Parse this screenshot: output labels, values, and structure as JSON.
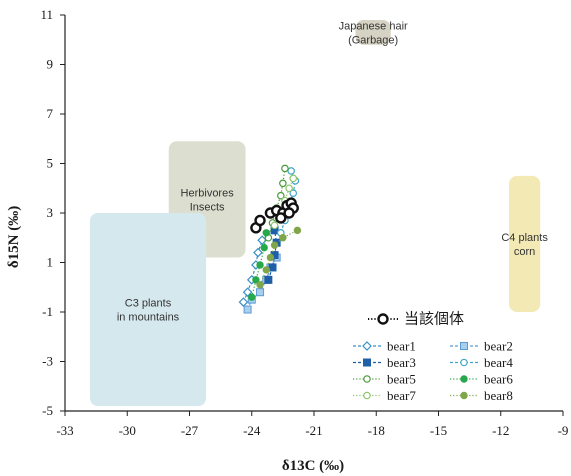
{
  "chart_data": {
    "type": "scatter",
    "xlabel": "δ13C (‰)",
    "ylabel": "δ15N (‰)",
    "xlim": [
      -33,
      -9
    ],
    "ylim": [
      -5,
      11
    ],
    "x_ticks": [
      "-33",
      "-30",
      "-27",
      "-24",
      "-21",
      "-18",
      "-15",
      "-12",
      "-9"
    ],
    "y_ticks": [
      "-5",
      "-3",
      "-1",
      "1",
      "3",
      "5",
      "7",
      "9",
      "11"
    ],
    "grid": false,
    "legend_placement": "bottom-right",
    "regions": [
      {
        "name": "japanese-hair",
        "lines": [
          "Japanese hair",
          "(Garbage)"
        ],
        "x": [
          -19,
          -17.3
        ],
        "y": [
          9.8,
          10.8
        ],
        "color": "#d6d3c4"
      },
      {
        "name": "herbivores-insects",
        "lines": [
          "Herbivores",
          "Insects"
        ],
        "x": [
          -28,
          -24.3
        ],
        "y": [
          1.2,
          5.9
        ],
        "color": "#dcdfcf"
      },
      {
        "name": "c3-plants",
        "lines": [
          "C3 plants",
          "in mountains"
        ],
        "x": [
          -31.8,
          -26.2
        ],
        "y": [
          -4.8,
          3.0
        ],
        "color": "#d5e8ee"
      },
      {
        "name": "c4-plants",
        "lines": [
          "C4 plants",
          "corn"
        ],
        "x": [
          -11.6,
          -10.1
        ],
        "y": [
          -1.0,
          4.5
        ],
        "color": "#f2e9b5"
      }
    ],
    "series": [
      {
        "name": "当該個体",
        "marker": "ring-bold",
        "color": "#111111",
        "line": "dotted",
        "points": [
          [
            -23.8,
            2.4
          ],
          [
            -23.6,
            2.7
          ],
          [
            -23.1,
            3.0
          ],
          [
            -22.8,
            3.1
          ],
          [
            -22.5,
            3.0
          ],
          [
            -22.3,
            3.3
          ],
          [
            -22.1,
            3.4
          ],
          [
            -22.0,
            3.2
          ],
          [
            -22.2,
            3.0
          ],
          [
            -22.6,
            2.8
          ]
        ]
      },
      {
        "name": "bear1",
        "marker": "diamond-open",
        "color": "#3a8fc4",
        "line": "dashed",
        "points": [
          [
            -24.4,
            -0.6
          ],
          [
            -24.2,
            -0.2
          ],
          [
            -24.0,
            0.3
          ],
          [
            -23.8,
            0.9
          ],
          [
            -23.7,
            1.4
          ],
          [
            -23.5,
            1.9
          ]
        ]
      },
      {
        "name": "bear2",
        "marker": "square-light",
        "color": "#5b9bd5",
        "line": "dashed",
        "points": [
          [
            -24.2,
            -0.9
          ],
          [
            -24.0,
            -0.5
          ],
          [
            -23.6,
            -0.2
          ],
          [
            -23.3,
            0.3
          ],
          [
            -23.1,
            0.8
          ],
          [
            -22.8,
            1.2
          ]
        ]
      },
      {
        "name": "bear3",
        "marker": "square-filled",
        "color": "#1f5fa8",
        "line": "dashed",
        "points": [
          [
            -23.2,
            0.3
          ],
          [
            -23.0,
            0.8
          ],
          [
            -22.9,
            1.3
          ],
          [
            -22.8,
            1.8
          ],
          [
            -22.9,
            2.3
          ]
        ]
      },
      {
        "name": "bear4",
        "marker": "circle-open",
        "color": "#41a5c8",
        "line": "dashed",
        "points": [
          [
            -22.6,
            2.2
          ],
          [
            -22.4,
            2.7
          ],
          [
            -22.2,
            3.3
          ],
          [
            -22.0,
            3.8
          ],
          [
            -21.9,
            4.3
          ],
          [
            -22.1,
            4.7
          ]
        ]
      },
      {
        "name": "bear5",
        "marker": "circle-open",
        "color": "#4a9a3a",
        "line": "dotted",
        "points": [
          [
            -23.2,
            2.0
          ],
          [
            -23.0,
            2.6
          ],
          [
            -22.8,
            3.2
          ],
          [
            -22.6,
            3.7
          ],
          [
            -22.5,
            4.2
          ],
          [
            -22.4,
            4.8
          ]
        ]
      },
      {
        "name": "bear6",
        "marker": "circle-filled",
        "color": "#27a84a",
        "line": "dotted",
        "points": [
          [
            -24.0,
            -0.4
          ],
          [
            -23.8,
            0.3
          ],
          [
            -23.6,
            0.9
          ],
          [
            -23.4,
            1.6
          ],
          [
            -23.3,
            2.2
          ]
        ]
      },
      {
        "name": "bear7",
        "marker": "circle-open",
        "color": "#8cc46a",
        "line": "dotted",
        "points": [
          [
            -22.9,
            2.5
          ],
          [
            -22.6,
            3.0
          ],
          [
            -22.4,
            3.5
          ],
          [
            -22.2,
            4.0
          ],
          [
            -22.0,
            4.4
          ]
        ]
      },
      {
        "name": "bear8",
        "marker": "circle-filled",
        "color": "#7fa64a",
        "line": "dotted",
        "points": [
          [
            -23.6,
            0.1
          ],
          [
            -23.3,
            0.7
          ],
          [
            -23.1,
            1.2
          ],
          [
            -22.9,
            1.7
          ],
          [
            -22.5,
            2.0
          ],
          [
            -21.8,
            2.3
          ]
        ]
      }
    ]
  }
}
